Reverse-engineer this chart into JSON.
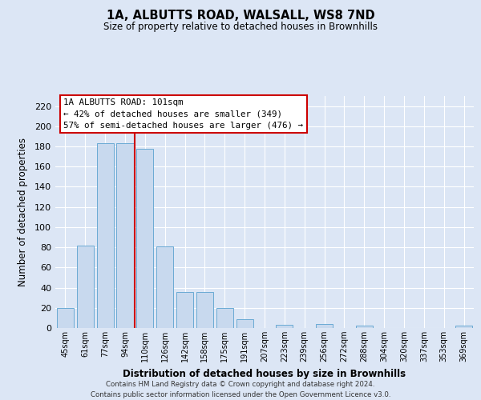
{
  "title": "1A, ALBUTTS ROAD, WALSALL, WS8 7ND",
  "subtitle": "Size of property relative to detached houses in Brownhills",
  "xlabel": "Distribution of detached houses by size in Brownhills",
  "ylabel": "Number of detached properties",
  "bar_labels": [
    "45sqm",
    "61sqm",
    "77sqm",
    "94sqm",
    "110sqm",
    "126sqm",
    "142sqm",
    "158sqm",
    "175sqm",
    "191sqm",
    "207sqm",
    "223sqm",
    "239sqm",
    "256sqm",
    "272sqm",
    "288sqm",
    "304sqm",
    "320sqm",
    "337sqm",
    "353sqm",
    "369sqm"
  ],
  "bar_values": [
    20,
    82,
    183,
    183,
    178,
    81,
    36,
    36,
    20,
    9,
    0,
    3,
    0,
    4,
    0,
    2,
    0,
    0,
    0,
    0,
    2
  ],
  "bar_color": "#c8d9ee",
  "bar_edge_color": "#6aaad4",
  "vline_x": 3.5,
  "vline_color": "#cc0000",
  "ylim": [
    0,
    230
  ],
  "yticks": [
    0,
    20,
    40,
    60,
    80,
    100,
    120,
    140,
    160,
    180,
    200,
    220
  ],
  "annotation_title": "1A ALBUTTS ROAD: 101sqm",
  "annotation_line1": "← 42% of detached houses are smaller (349)",
  "annotation_line2": "57% of semi-detached houses are larger (476) →",
  "footer_line1": "Contains HM Land Registry data © Crown copyright and database right 2024.",
  "footer_line2": "Contains public sector information licensed under the Open Government Licence v3.0.",
  "background_color": "#dce6f5",
  "plot_bg_color": "#dce6f5",
  "grid_color": "#ffffff"
}
